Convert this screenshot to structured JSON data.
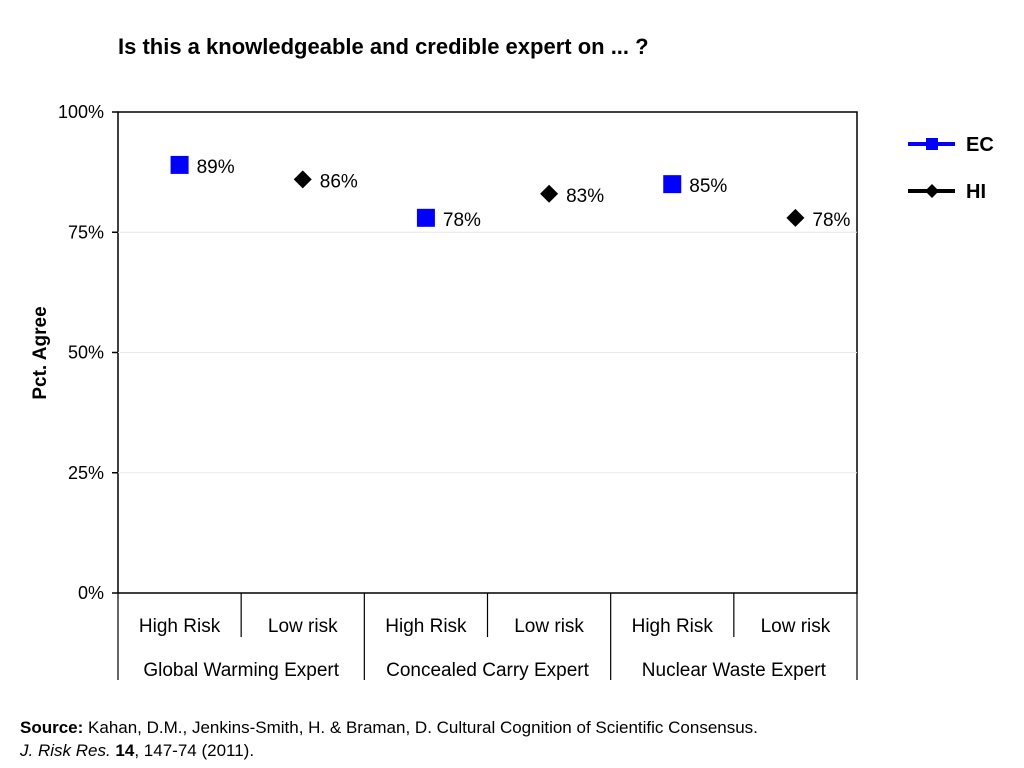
{
  "chart_data": {
    "type": "scatter",
    "title": "Is this a knowledgeable and credible  expert on ... ?",
    "ylabel": "Pct. Agree",
    "xlabel": "",
    "ylim": [
      0,
      100
    ],
    "yticks": [
      "0%",
      "25%",
      "50%",
      "75%",
      "100%"
    ],
    "ytick_values": [
      0,
      25,
      50,
      75,
      100
    ],
    "grid": true,
    "legend_position": "right",
    "groups": [
      "Global Warming Expert",
      "Concealed Carry Expert",
      "Nuclear Waste Expert"
    ],
    "categories": [
      "High Risk",
      "Low risk",
      "High Risk",
      "Low risk",
      "High Risk",
      "Low risk"
    ],
    "series": [
      {
        "name": "EC",
        "color": "#0000ff",
        "marker": "square",
        "values": [
          89,
          null,
          78,
          null,
          85,
          null
        ],
        "labels": [
          "89%",
          "",
          "78%",
          "",
          "85%",
          ""
        ]
      },
      {
        "name": "HI",
        "color": "#000000",
        "marker": "diamond",
        "values": [
          null,
          86,
          null,
          83,
          null,
          78
        ],
        "labels": [
          "",
          "86%",
          "",
          "83%",
          "",
          "78%"
        ]
      }
    ]
  },
  "source": {
    "label": "Source:",
    "text": " Kahan, D.M., Jenkins-Smith, H. & Braman, D. Cultural Cognition of Scientific Consensus.",
    "journal": "J. Risk Res.",
    "volume": "14",
    "pages": ", 147-74 (2011)."
  }
}
